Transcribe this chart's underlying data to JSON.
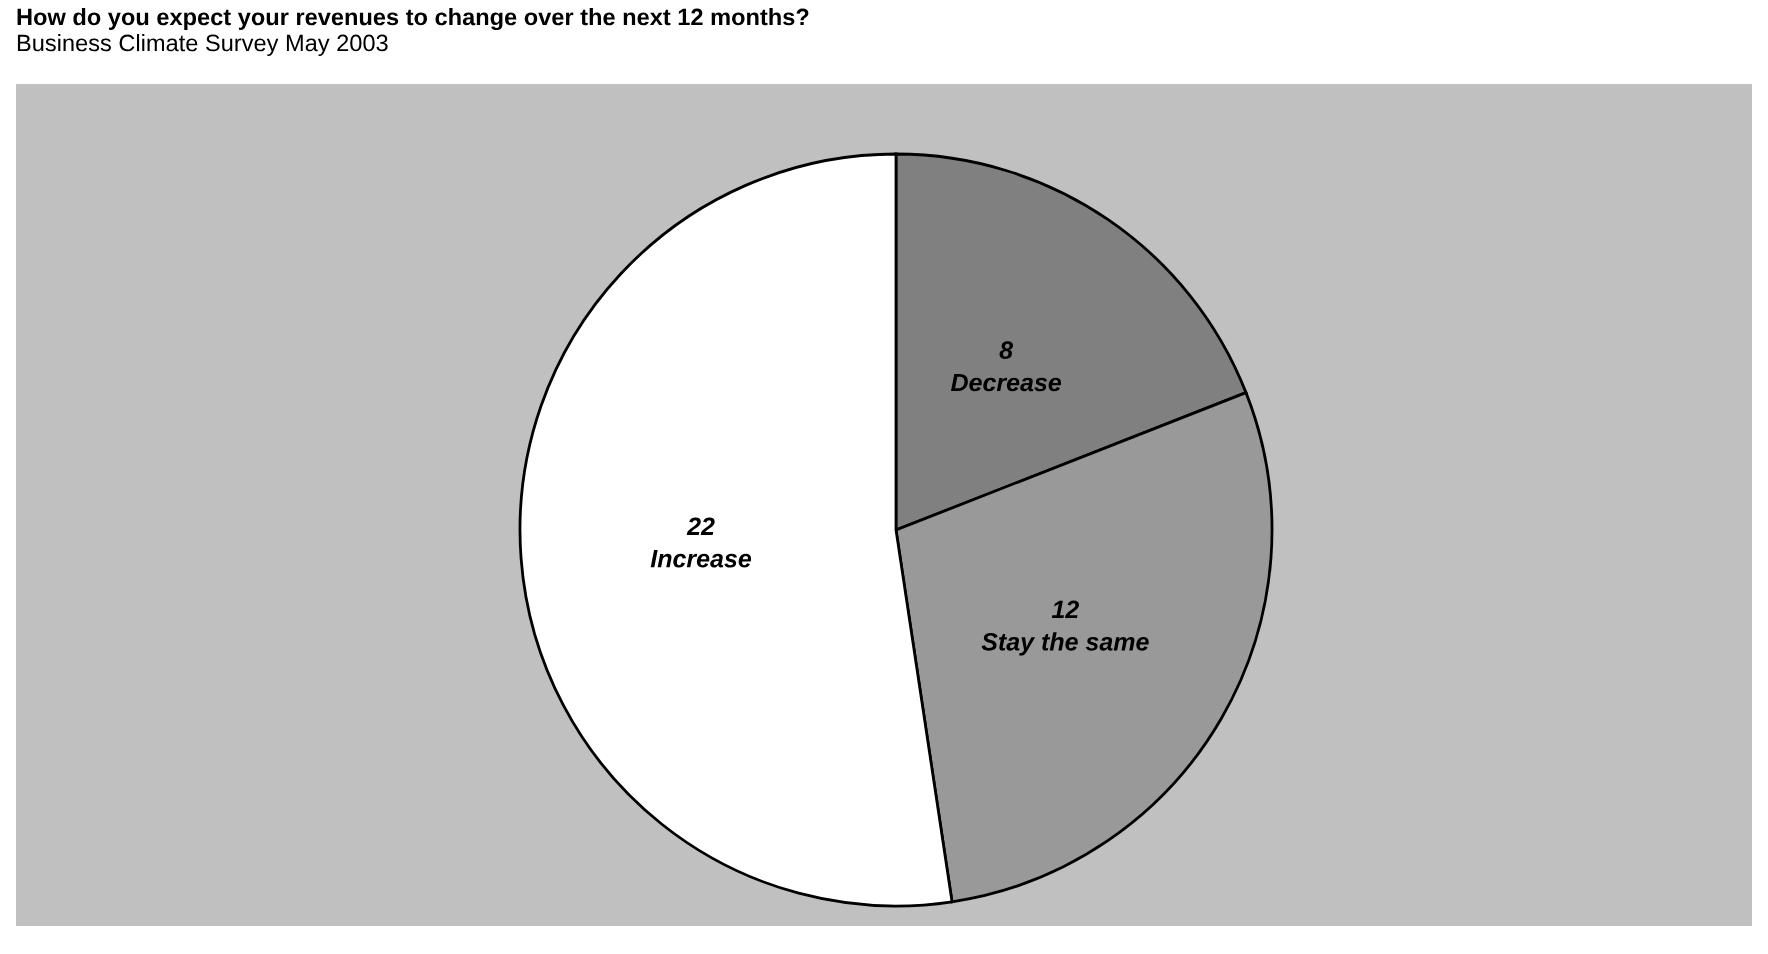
{
  "chart_data": {
    "type": "pie",
    "title": "How do you expect your revenues to change over the next 12 months?",
    "subtitle": "Business Climate Survey May 2003",
    "categories": [
      "Decrease",
      "Stay the same",
      "Increase"
    ],
    "values": [
      8,
      12,
      22
    ],
    "colors": [
      "#808080",
      "#999999",
      "#ffffff"
    ],
    "data_labels": true,
    "legend": false
  }
}
